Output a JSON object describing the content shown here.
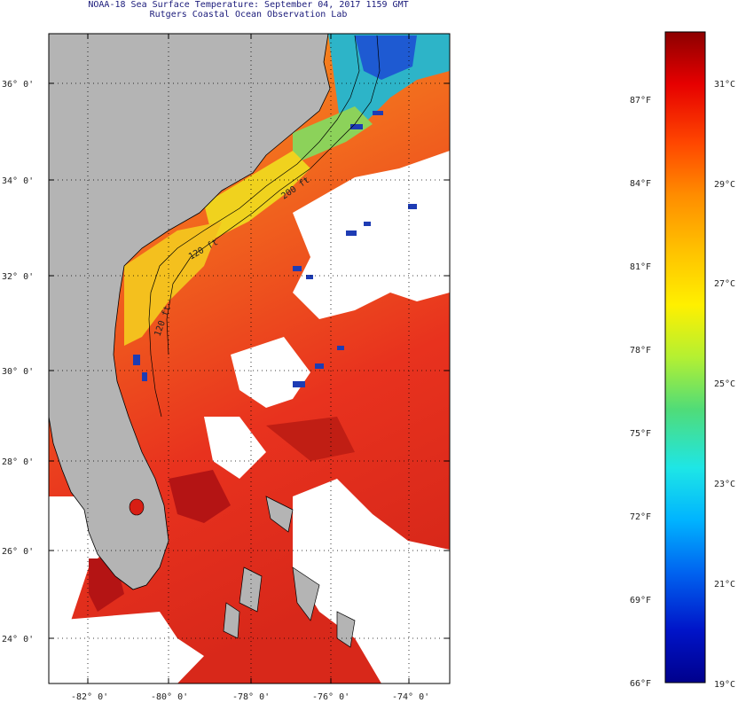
{
  "header": {
    "title": "NOAA-18 Sea Surface Temperature:  September 04, 2017 1159 GMT",
    "subtitle": "Rutgers Coastal Ocean Observation Lab"
  },
  "map": {
    "lat_labels": [
      "36° 0'",
      "34° 0'",
      "32° 0'",
      "30° 0'",
      "28° 0'",
      "26° 0'",
      "24° 0'"
    ],
    "lon_labels": [
      "-82° 0'",
      "-80° 0'",
      "-78° 0'",
      "-76° 0'",
      "-74° 0'"
    ],
    "contour_labels": [
      "120 ft",
      "120 ft",
      "200 ft"
    ],
    "colors": {
      "land": "#b4b4b4",
      "cloud": "#ffffff",
      "warm": "#e8321e",
      "hot": "#b41414",
      "mid": "#f7a01e",
      "cool": "#2db4c8",
      "cold": "#1e3cb4"
    }
  },
  "colorbar": {
    "f_labels": [
      "87°F",
      "84°F",
      "81°F",
      "78°F",
      "75°F",
      "72°F",
      "69°F",
      "66°F"
    ],
    "c_labels": [
      "31°C",
      "29°C",
      "27°C",
      "25°C",
      "23°C",
      "21°C",
      "19°C"
    ],
    "stops": [
      "#00008c",
      "#0014c8",
      "#0064f0",
      "#00b4ff",
      "#1ee6e6",
      "#50dc78",
      "#b4f032",
      "#fff000",
      "#ffbe00",
      "#ff8c00",
      "#ff4600",
      "#e60000",
      "#8c0000"
    ]
  }
}
